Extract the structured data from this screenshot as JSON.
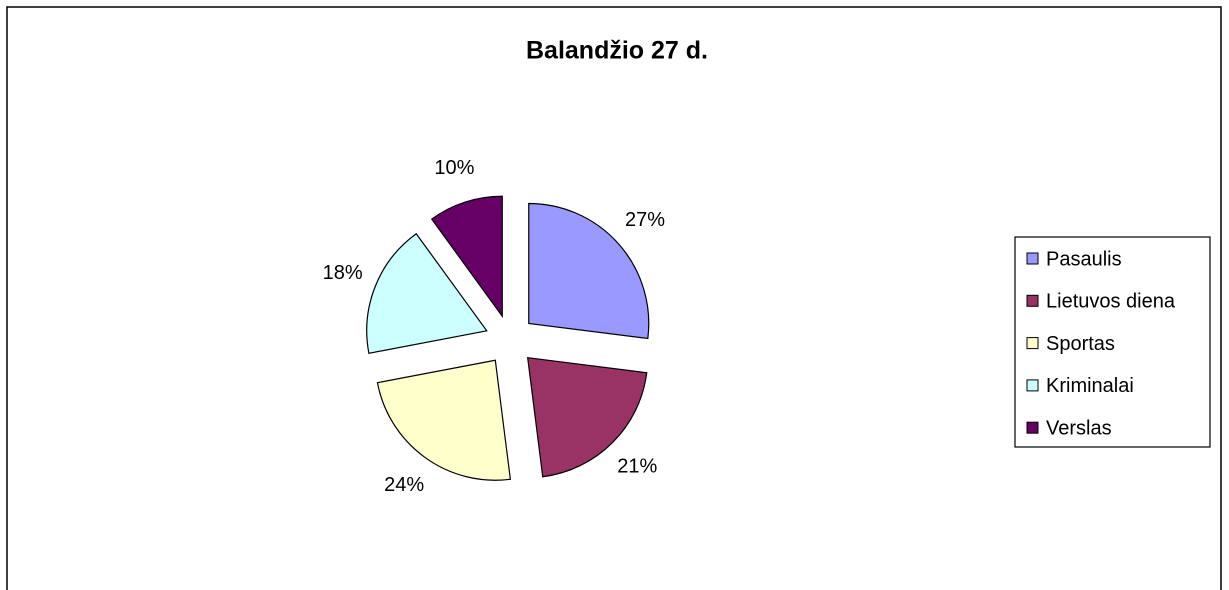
{
  "chart_data": {
    "type": "pie",
    "title": "Balandžio 27 d.",
    "categories": [
      "Pasaulis",
      "Lietuvos diena",
      "Sportas",
      "Kriminalai",
      "Verslas"
    ],
    "values": [
      27,
      21,
      24,
      18,
      10
    ],
    "value_labels": [
      "27%",
      "21%",
      "24%",
      "18%",
      "10%"
    ],
    "colors": [
      "#9999ff",
      "#993366",
      "#ffffcc",
      "#ccffff",
      "#660066"
    ],
    "legend": "right"
  }
}
